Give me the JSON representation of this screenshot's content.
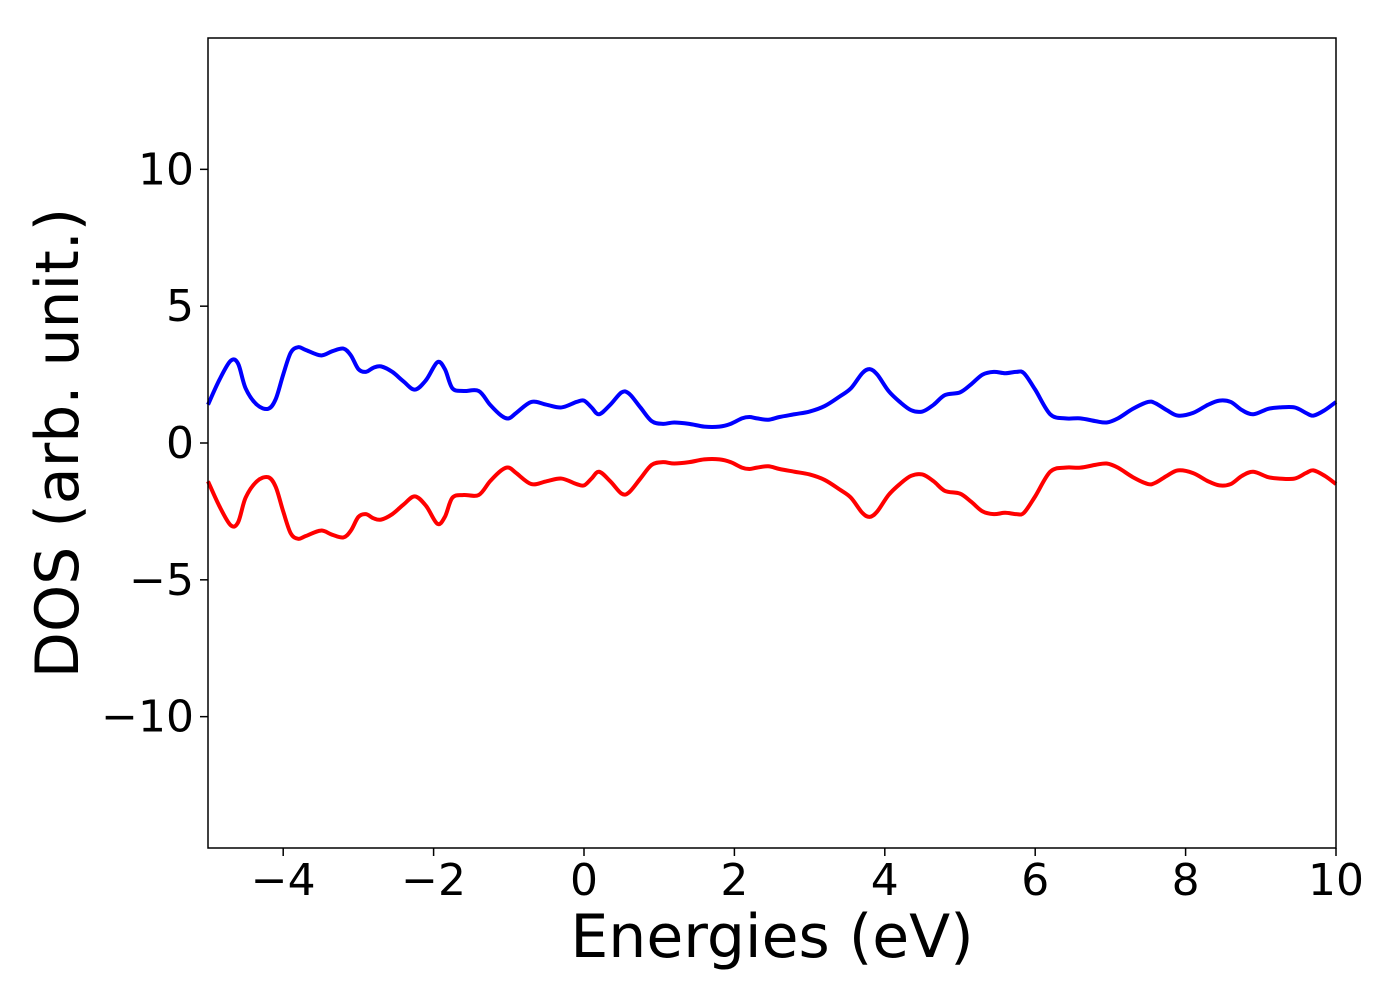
{
  "chart_data": {
    "type": "line",
    "title": "",
    "xlabel": "Energies (eV)",
    "ylabel": "DOS (arb. unit.)",
    "xlim": [
      -5,
      10
    ],
    "ylim": [
      -14.8,
      14.8
    ],
    "xticks": [
      -4,
      -2,
      0,
      2,
      4,
      6,
      8,
      10
    ],
    "yticks": [
      -10,
      -5,
      0,
      5,
      10
    ],
    "xtick_labels": [
      "−4",
      "−2",
      "0",
      "2",
      "4",
      "6",
      "8",
      "10"
    ],
    "ytick_labels": [
      "−10",
      "−5",
      "0",
      "5",
      "10"
    ],
    "grid": false,
    "legend": "none",
    "series": [
      {
        "color": "#0000ff",
        "x": [
          -5.0,
          -4.85,
          -4.7,
          -4.6,
          -4.5,
          -4.35,
          -4.2,
          -4.1,
          -4.0,
          -3.9,
          -3.8,
          -3.7,
          -3.5,
          -3.35,
          -3.2,
          -3.1,
          -3.0,
          -2.9,
          -2.8,
          -2.7,
          -2.55,
          -2.4,
          -2.25,
          -2.1,
          -1.95,
          -1.85,
          -1.75,
          -1.6,
          -1.4,
          -1.25,
          -1.1,
          -1.0,
          -0.9,
          -0.7,
          -0.5,
          -0.3,
          -0.1,
          0.0,
          0.1,
          0.2,
          0.35,
          0.5,
          0.6,
          0.75,
          0.9,
          1.05,
          1.2,
          1.4,
          1.6,
          1.8,
          1.95,
          2.1,
          2.2,
          2.3,
          2.45,
          2.6,
          2.8,
          3.0,
          3.2,
          3.4,
          3.55,
          3.7,
          3.8,
          3.9,
          4.05,
          4.2,
          4.35,
          4.5,
          4.65,
          4.8,
          5.0,
          5.15,
          5.3,
          5.45,
          5.6,
          5.75,
          5.85,
          6.0,
          6.2,
          6.4,
          6.6,
          6.8,
          6.95,
          7.1,
          7.3,
          7.5,
          7.6,
          7.75,
          7.9,
          8.1,
          8.3,
          8.45,
          8.6,
          8.75,
          8.9,
          9.1,
          9.25,
          9.45,
          9.6,
          9.7,
          9.85,
          10.0
        ],
        "y": [
          1.4,
          2.3,
          3.0,
          2.9,
          2.0,
          1.4,
          1.25,
          1.6,
          2.5,
          3.3,
          3.5,
          3.4,
          3.2,
          3.35,
          3.45,
          3.2,
          2.7,
          2.6,
          2.75,
          2.8,
          2.6,
          2.25,
          1.95,
          2.3,
          2.95,
          2.7,
          2.0,
          1.9,
          1.9,
          1.4,
          1.0,
          0.9,
          1.1,
          1.5,
          1.4,
          1.3,
          1.5,
          1.55,
          1.3,
          1.05,
          1.4,
          1.85,
          1.8,
          1.3,
          0.8,
          0.7,
          0.75,
          0.7,
          0.6,
          0.6,
          0.7,
          0.9,
          0.95,
          0.9,
          0.85,
          0.95,
          1.05,
          1.15,
          1.35,
          1.7,
          2.0,
          2.55,
          2.7,
          2.5,
          1.9,
          1.5,
          1.2,
          1.15,
          1.4,
          1.75,
          1.85,
          2.15,
          2.5,
          2.6,
          2.55,
          2.6,
          2.55,
          1.95,
          1.05,
          0.9,
          0.9,
          0.8,
          0.75,
          0.9,
          1.25,
          1.5,
          1.45,
          1.2,
          1.0,
          1.1,
          1.4,
          1.55,
          1.5,
          1.2,
          1.05,
          1.25,
          1.3,
          1.3,
          1.1,
          1.0,
          1.2,
          1.5
        ]
      },
      {
        "color": "#ff0000",
        "x": [
          -5.0,
          -4.85,
          -4.7,
          -4.6,
          -4.5,
          -4.35,
          -4.2,
          -4.1,
          -4.0,
          -3.9,
          -3.8,
          -3.7,
          -3.5,
          -3.35,
          -3.2,
          -3.1,
          -3.0,
          -2.9,
          -2.8,
          -2.7,
          -2.55,
          -2.4,
          -2.25,
          -2.1,
          -1.95,
          -1.85,
          -1.75,
          -1.6,
          -1.4,
          -1.25,
          -1.1,
          -1.0,
          -0.9,
          -0.7,
          -0.5,
          -0.3,
          -0.1,
          0.0,
          0.1,
          0.2,
          0.35,
          0.5,
          0.6,
          0.75,
          0.9,
          1.05,
          1.2,
          1.4,
          1.6,
          1.8,
          1.95,
          2.1,
          2.2,
          2.3,
          2.45,
          2.6,
          2.8,
          3.0,
          3.2,
          3.4,
          3.55,
          3.7,
          3.8,
          3.9,
          4.05,
          4.2,
          4.35,
          4.5,
          4.65,
          4.8,
          5.0,
          5.15,
          5.3,
          5.45,
          5.6,
          5.75,
          5.85,
          6.0,
          6.2,
          6.4,
          6.6,
          6.8,
          6.95,
          7.1,
          7.3,
          7.5,
          7.6,
          7.75,
          7.9,
          8.1,
          8.3,
          8.45,
          8.6,
          8.75,
          8.9,
          9.1,
          9.25,
          9.45,
          9.6,
          9.7,
          9.85,
          10.0
        ],
        "y": [
          -1.4,
          -2.3,
          -3.0,
          -2.9,
          -2.0,
          -1.4,
          -1.25,
          -1.6,
          -2.5,
          -3.3,
          -3.5,
          -3.4,
          -3.2,
          -3.35,
          -3.45,
          -3.2,
          -2.7,
          -2.6,
          -2.75,
          -2.8,
          -2.6,
          -2.25,
          -1.95,
          -2.3,
          -2.95,
          -2.7,
          -2.0,
          -1.9,
          -1.9,
          -1.4,
          -1.0,
          -0.9,
          -1.1,
          -1.5,
          -1.4,
          -1.3,
          -1.5,
          -1.55,
          -1.3,
          -1.05,
          -1.4,
          -1.85,
          -1.8,
          -1.3,
          -0.8,
          -0.7,
          -0.75,
          -0.7,
          -0.6,
          -0.6,
          -0.7,
          -0.9,
          -0.95,
          -0.9,
          -0.85,
          -0.95,
          -1.05,
          -1.15,
          -1.35,
          -1.7,
          -2.0,
          -2.55,
          -2.7,
          -2.5,
          -1.9,
          -1.5,
          -1.2,
          -1.15,
          -1.4,
          -1.75,
          -1.85,
          -2.15,
          -2.5,
          -2.6,
          -2.55,
          -2.6,
          -2.55,
          -1.95,
          -1.05,
          -0.9,
          -0.9,
          -0.8,
          -0.75,
          -0.9,
          -1.25,
          -1.5,
          -1.45,
          -1.2,
          -1.0,
          -1.1,
          -1.4,
          -1.55,
          -1.5,
          -1.2,
          -1.05,
          -1.25,
          -1.3,
          -1.3,
          -1.1,
          -1.0,
          -1.2,
          -1.5
        ]
      }
    ]
  }
}
